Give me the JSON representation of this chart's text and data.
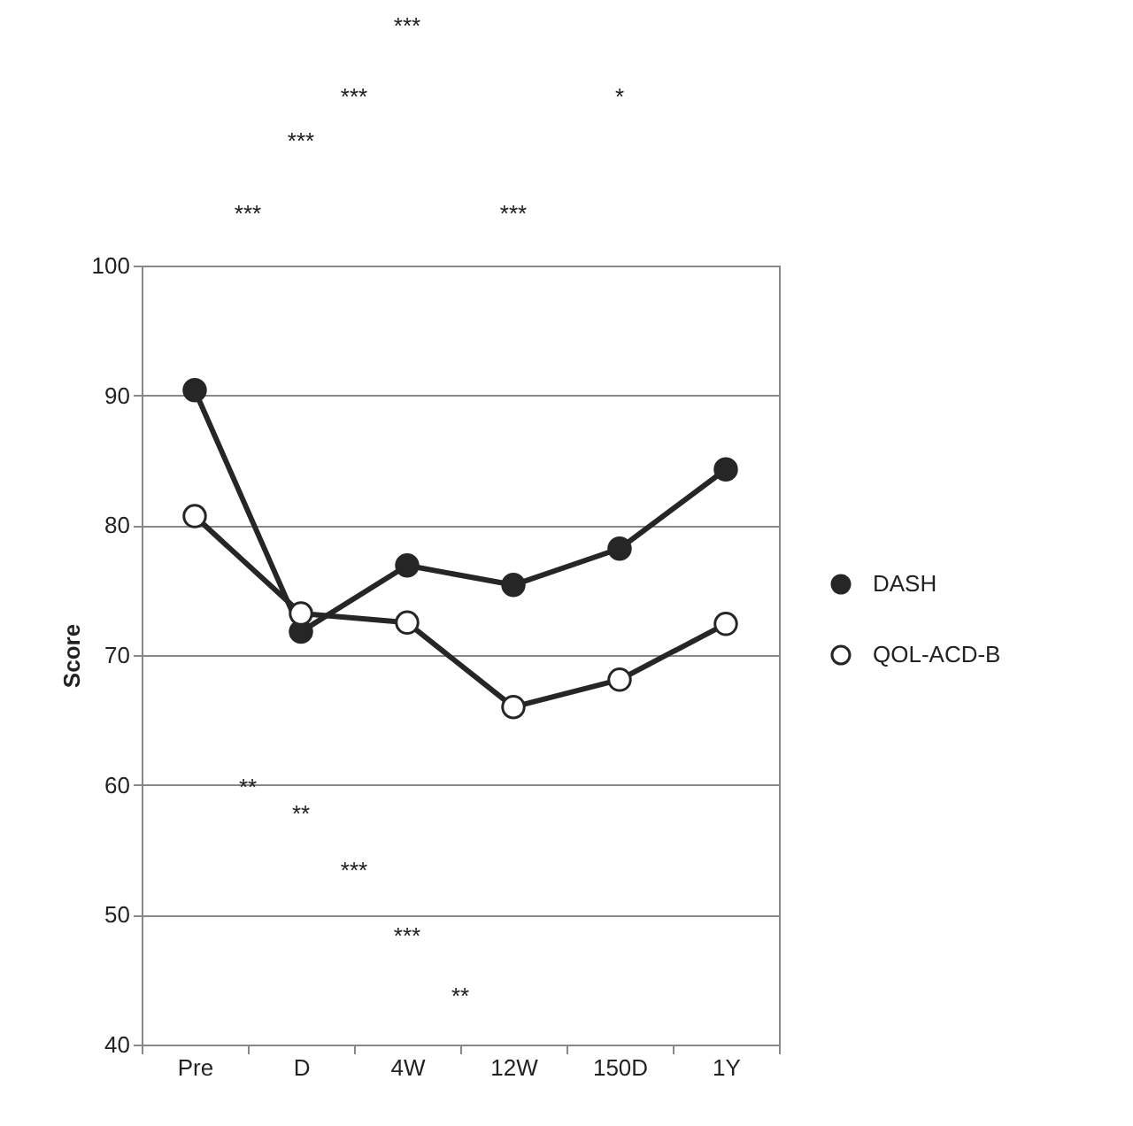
{
  "chart_data": {
    "type": "line",
    "ylabel": "Score",
    "categories": [
      "Pre",
      "D",
      "4W",
      "12W",
      "150D",
      "1Y"
    ],
    "series": [
      {
        "name": "DASH",
        "color": "#262626",
        "values": [
          90.4,
          71.8,
          76.9,
          75.4,
          78.2,
          84.3
        ]
      },
      {
        "name": "QOL-ACD-B",
        "color": "#262626",
        "values": [
          80.7,
          73.2,
          72.5,
          66.0,
          68.1,
          72.4
        ]
      }
    ],
    "ylim": [
      40,
      100
    ],
    "yticks": [
      40,
      50,
      60,
      70,
      80,
      90,
      100
    ],
    "grid": "y",
    "legend": "right",
    "marker": "circle",
    "annotations": [
      "***",
      "***",
      "*",
      "***",
      "***",
      "***",
      "**",
      "**",
      "***",
      "***",
      "**"
    ]
  }
}
